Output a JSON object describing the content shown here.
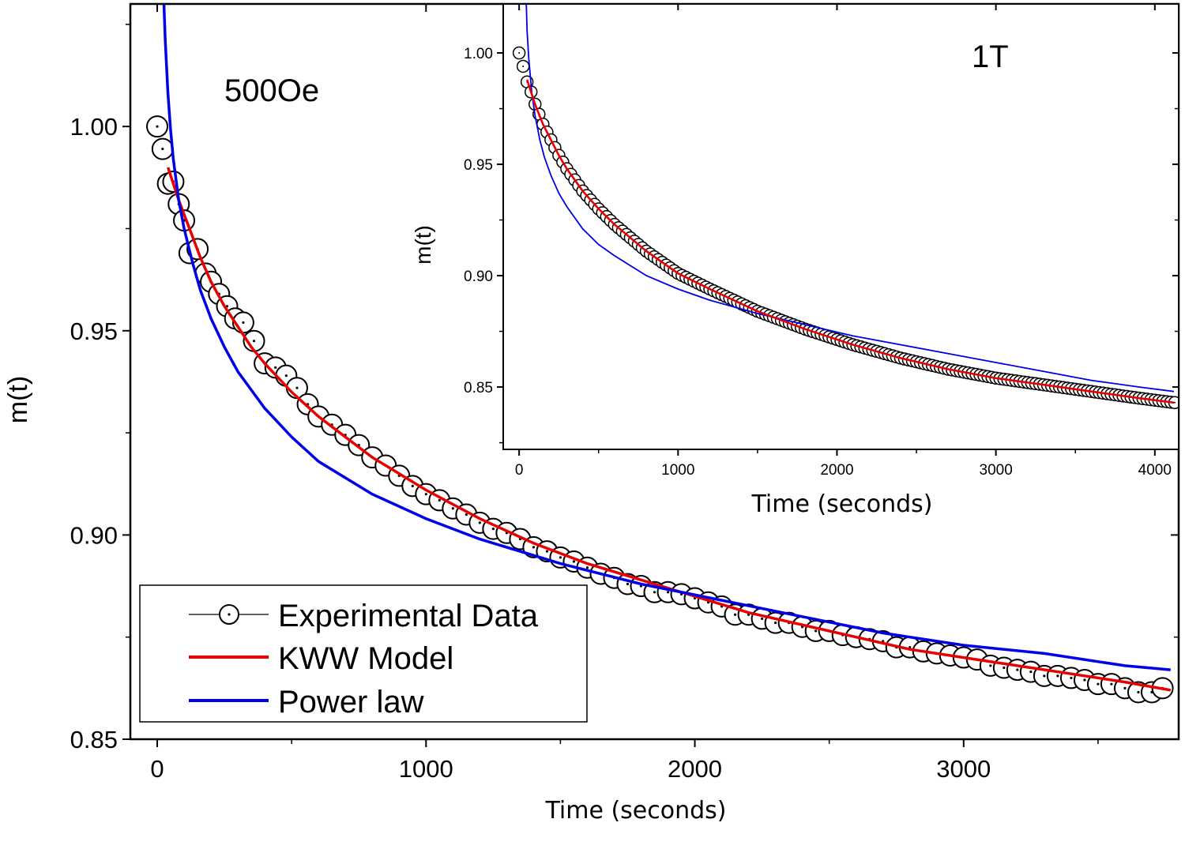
{
  "chart_data": [
    {
      "type": "line",
      "name": "main",
      "xlabel": "Time (seconds)",
      "ylabel": "m(t)",
      "xlim": [
        -100,
        3800
      ],
      "ylim": [
        0.85,
        1.03
      ],
      "xticks": [
        0,
        1000,
        2000,
        3000
      ],
      "yticks": [
        0.85,
        0.9,
        0.95,
        1.0
      ],
      "xtick_labels": [
        "0",
        "1000",
        "2000",
        "3000"
      ],
      "ytick_labels": [
        "0.85",
        "0.90",
        "0.95",
        "1.00"
      ],
      "annotation": "500Oe",
      "legend": {
        "position": "bottom-left",
        "entries": [
          "Experimental Data",
          "KWW Model",
          "Power law"
        ]
      },
      "series": [
        {
          "name": "Experimental Data",
          "style": "open-circle",
          "x": [
            0,
            20,
            40,
            60,
            80,
            100,
            120,
            150,
            180,
            200,
            230,
            260,
            290,
            320,
            360,
            400,
            440,
            480,
            520,
            560,
            600,
            650,
            700,
            750,
            800,
            850,
            900,
            950,
            1000,
            1050,
            1100,
            1150,
            1200,
            1250,
            1300,
            1350,
            1400,
            1450,
            1500,
            1550,
            1600,
            1650,
            1700,
            1750,
            1800,
            1850,
            1900,
            1950,
            2000,
            2050,
            2100,
            2150,
            2200,
            2250,
            2300,
            2350,
            2400,
            2450,
            2500,
            2550,
            2600,
            2650,
            2700,
            2750,
            2800,
            2850,
            2900,
            2950,
            3000,
            3050,
            3100,
            3150,
            3200,
            3250,
            3300,
            3350,
            3400,
            3450,
            3500,
            3550,
            3600,
            3650,
            3700,
            3740
          ],
          "y": [
            1.0,
            0.9945,
            0.986,
            0.9865,
            0.981,
            0.977,
            0.969,
            0.97,
            0.964,
            0.962,
            0.959,
            0.956,
            0.953,
            0.952,
            0.9475,
            0.942,
            0.941,
            0.939,
            0.936,
            0.932,
            0.929,
            0.927,
            0.9245,
            0.922,
            0.919,
            0.917,
            0.9145,
            0.912,
            0.91,
            0.9085,
            0.9065,
            0.905,
            0.903,
            0.9015,
            0.9005,
            0.899,
            0.897,
            0.896,
            0.8945,
            0.8935,
            0.892,
            0.8905,
            0.8895,
            0.888,
            0.8875,
            0.886,
            0.886,
            0.8855,
            0.8845,
            0.8835,
            0.8825,
            0.8805,
            0.8805,
            0.8795,
            0.8785,
            0.8785,
            0.8775,
            0.8765,
            0.8765,
            0.8755,
            0.875,
            0.8745,
            0.874,
            0.8725,
            0.8725,
            0.8715,
            0.871,
            0.8705,
            0.87,
            0.8695,
            0.868,
            0.8675,
            0.867,
            0.8665,
            0.8655,
            0.8655,
            0.865,
            0.8645,
            0.8635,
            0.8635,
            0.8625,
            0.8615,
            0.8615,
            0.8625
          ]
        },
        {
          "name": "KWW Model",
          "color": "#e60000",
          "x": [
            40,
            80,
            120,
            160,
            200,
            250,
            300,
            350,
            400,
            500,
            600,
            700,
            800,
            900,
            1000,
            1200,
            1400,
            1600,
            1800,
            2000,
            2200,
            2400,
            2600,
            2800,
            3000,
            3200,
            3400,
            3600,
            3770
          ],
          "y": [
            0.99,
            0.982,
            0.975,
            0.968,
            0.962,
            0.956,
            0.951,
            0.946,
            0.942,
            0.935,
            0.929,
            0.924,
            0.919,
            0.915,
            0.911,
            0.904,
            0.898,
            0.893,
            0.889,
            0.885,
            0.881,
            0.878,
            0.875,
            0.872,
            0.87,
            0.868,
            0.866,
            0.864,
            0.862
          ]
        },
        {
          "name": "Power law",
          "color": "#0000e6",
          "x": [
            25,
            30,
            40,
            50,
            60,
            80,
            100,
            130,
            160,
            200,
            250,
            300,
            400,
            500,
            600,
            800,
            1000,
            1200,
            1500,
            1800,
            2100,
            2400,
            2700,
            3000,
            3300,
            3600,
            3770
          ],
          "y": [
            1.03,
            1.021,
            1.008,
            0.999,
            0.992,
            0.982,
            0.975,
            0.967,
            0.96,
            0.953,
            0.946,
            0.94,
            0.931,
            0.924,
            0.918,
            0.91,
            0.904,
            0.899,
            0.893,
            0.888,
            0.884,
            0.88,
            0.876,
            0.873,
            0.871,
            0.868,
            0.867
          ]
        }
      ]
    },
    {
      "type": "line",
      "name": "inset",
      "xlabel": "Time (seconds)",
      "ylabel": "m(t)",
      "xlim": [
        -100,
        4150
      ],
      "ylim": [
        0.822,
        1.022
      ],
      "xticks": [
        0,
        1000,
        2000,
        3000,
        4000
      ],
      "yticks": [
        0.85,
        0.9,
        0.95,
        1.0
      ],
      "xtick_labels": [
        "0",
        "1000",
        "2000",
        "3000",
        "4000"
      ],
      "ytick_labels": [
        "0.85",
        "0.90",
        "0.95",
        "1.00"
      ],
      "annotation": "1T",
      "series": [
        {
          "name": "Experimental Data",
          "style": "open-circle",
          "x_start": 0,
          "x_step": 25,
          "x_end": 4125,
          "formula_note": "points lie on the KWW curve",
          "first_points": [
            [
              0,
              1.0
            ],
            [
              25,
              0.994
            ],
            [
              50,
              0.987
            ]
          ]
        },
        {
          "name": "KWW Model",
          "color": "#e60000",
          "x": [
            50,
            100,
            150,
            200,
            250,
            300,
            400,
            500,
            600,
            800,
            1000,
            1200,
            1500,
            1800,
            2100,
            2400,
            2700,
            3000,
            3300,
            3600,
            3900,
            4120
          ],
          "y": [
            0.988,
            0.977,
            0.968,
            0.961,
            0.954,
            0.948,
            0.938,
            0.93,
            0.923,
            0.911,
            0.901,
            0.894,
            0.884,
            0.876,
            0.869,
            0.863,
            0.858,
            0.854,
            0.851,
            0.848,
            0.845,
            0.843
          ]
        },
        {
          "name": "Power law",
          "color": "#0000e6",
          "x": [
            45,
            50,
            60,
            80,
            100,
            130,
            160,
            200,
            250,
            300,
            400,
            500,
            600,
            800,
            1000,
            1200,
            1500,
            1800,
            2100,
            2400,
            2700,
            3000,
            3300,
            3600,
            3900,
            4120
          ],
          "y": [
            1.022,
            1.01,
            0.998,
            0.982,
            0.972,
            0.961,
            0.953,
            0.945,
            0.937,
            0.931,
            0.921,
            0.914,
            0.909,
            0.9,
            0.894,
            0.889,
            0.883,
            0.878,
            0.873,
            0.869,
            0.865,
            0.861,
            0.857,
            0.853,
            0.85,
            0.848
          ]
        }
      ]
    }
  ]
}
